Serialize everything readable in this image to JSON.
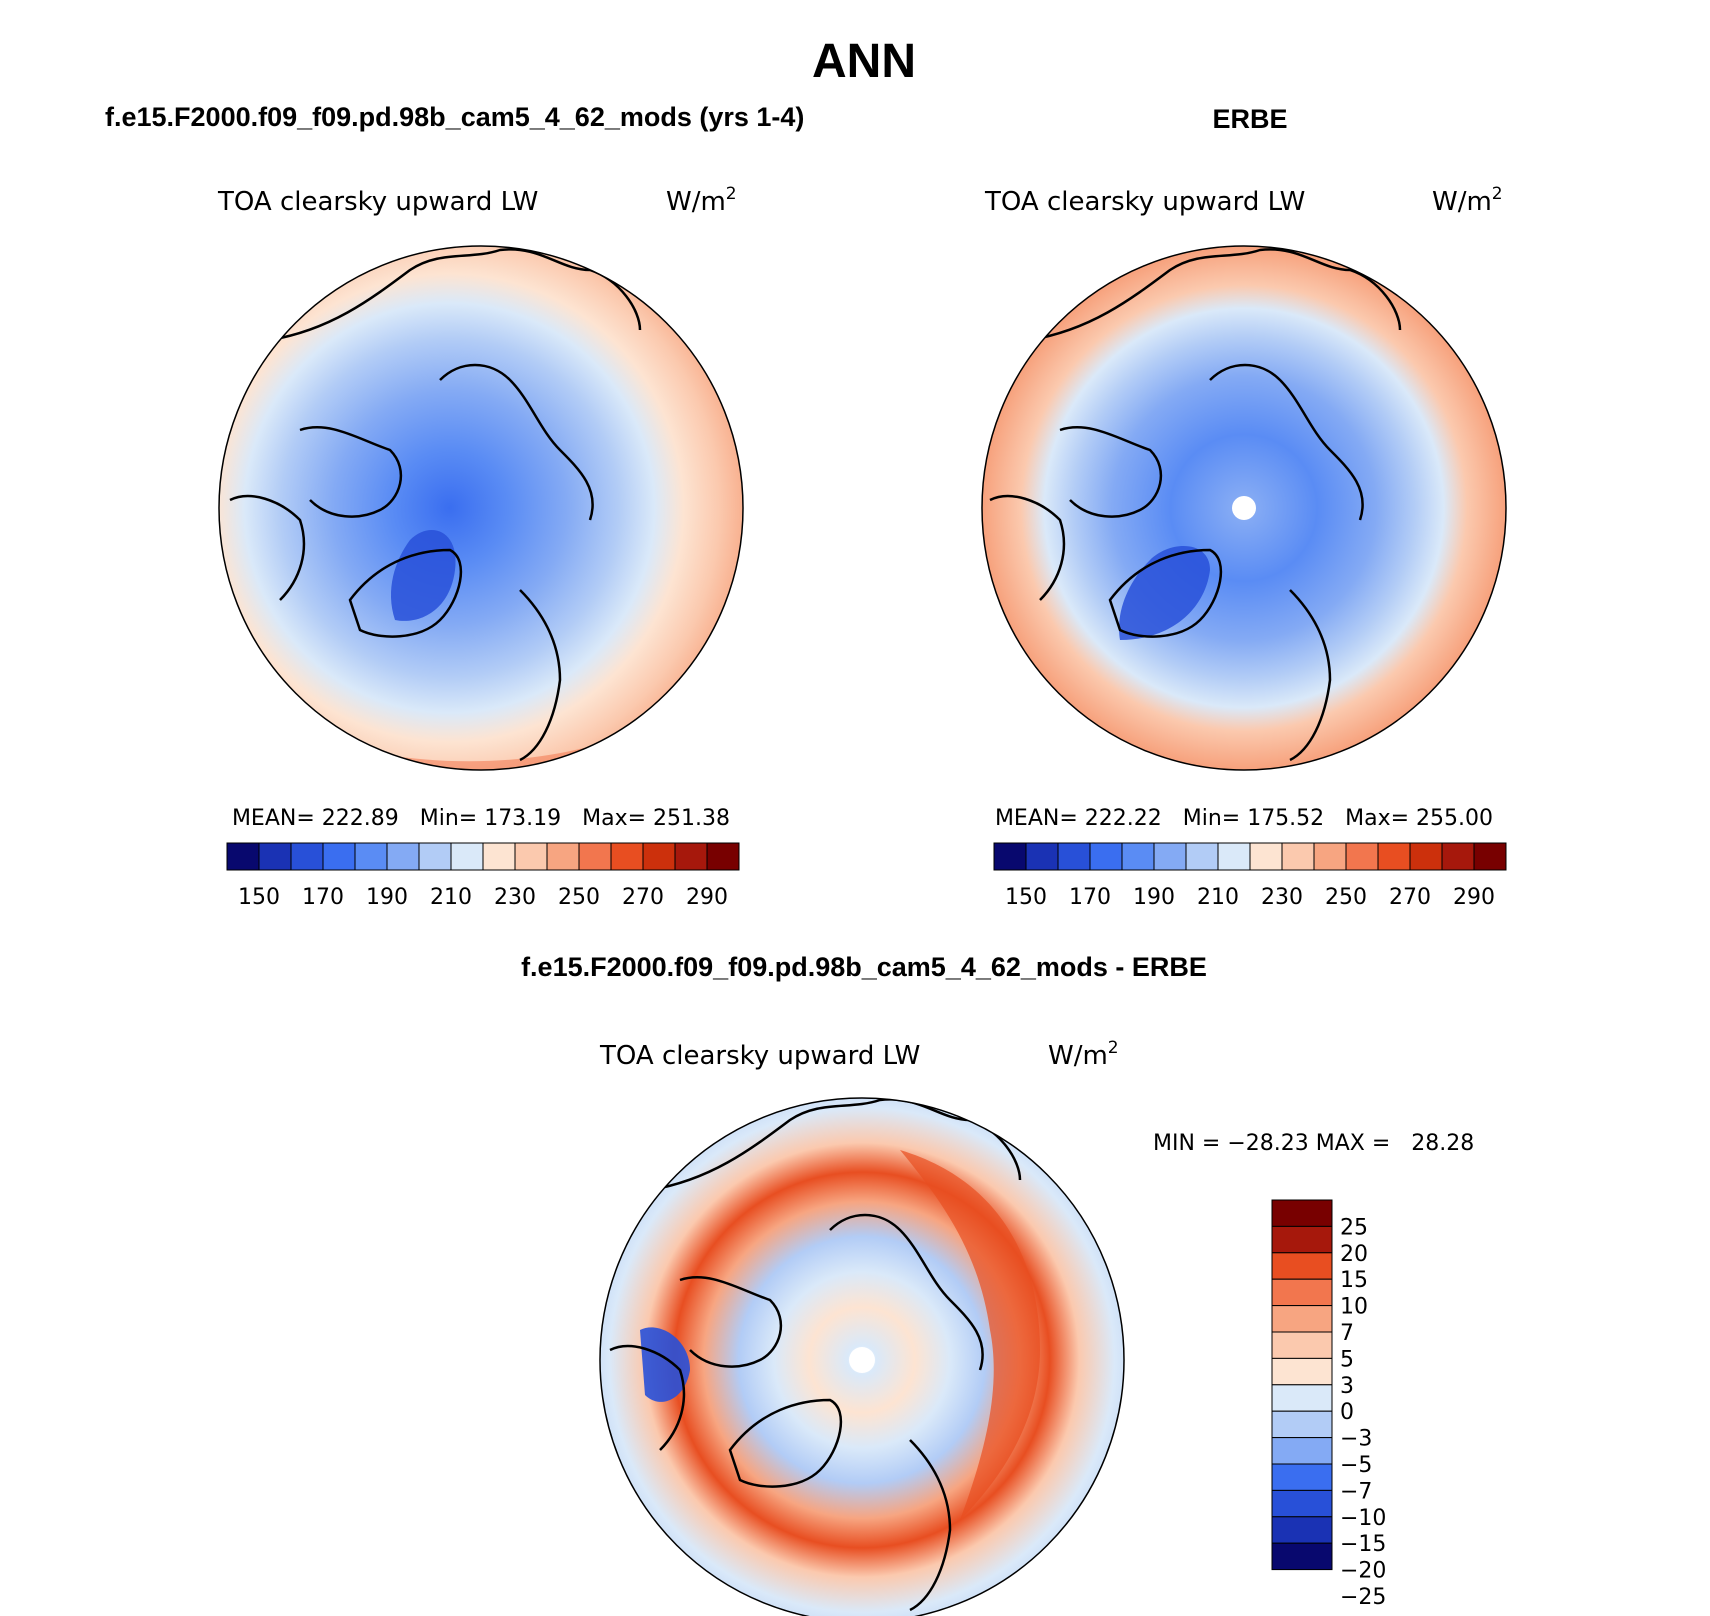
{
  "chart_data": {
    "type": "polar_contour_maps",
    "title": "ANN",
    "colors": {
      "abs_scale": [
        "#08086e",
        "#1a32b4",
        "#2850d8",
        "#3a6ef0",
        "#5a8cf4",
        "#84aaf4",
        "#b2ccf6",
        "#dae9f9",
        "#fde4d2",
        "#fbc9ae",
        "#f7a581",
        "#f2764e",
        "#e84e21",
        "#cc300c",
        "#a6180c",
        "#780000"
      ],
      "diff_scale": [
        "#08086e",
        "#1a32b4",
        "#2850d8",
        "#3a6ef0",
        "#84aaf4",
        "#b2ccf6",
        "#dae9f9",
        "#fde4d2",
        "#fbc9ae",
        "#f7a581",
        "#f2764e",
        "#e84e21",
        "#a6180c",
        "#780000"
      ]
    },
    "panels": [
      {
        "header": "f.e15.F2000.f09_f09.pd.98b_cam5_4_62_mods (yrs 1-4)",
        "variable": "TOA clearsky upward LW",
        "units_base": "W/m",
        "units_exp": "2",
        "stats": "MEAN= 222.89   Min= 173.19   Max= 251.38",
        "mean": 222.89,
        "min": 173.19,
        "max": 251.38,
        "colorbar_labels": [
          "150",
          "170",
          "190",
          "210",
          "230",
          "250",
          "270",
          "290"
        ]
      },
      {
        "header": "ERBE",
        "variable": "TOA clearsky upward LW",
        "units_base": "W/m",
        "units_exp": "2",
        "stats": "MEAN= 222.22   Min= 175.52   Max= 255.00",
        "mean": 222.22,
        "min": 175.52,
        "max": 255.0,
        "colorbar_labels": [
          "150",
          "170",
          "190",
          "210",
          "230",
          "250",
          "270",
          "290"
        ]
      },
      {
        "header": "f.e15.F2000.f09_f09.pd.98b_cam5_4_62_mods - ERBE",
        "variable": "TOA clearsky upward LW",
        "units_base": "W/m",
        "units_exp": "2",
        "stats": "MIN = −28.23 MAX =   28.28",
        "min": -28.23,
        "max": 28.28,
        "colorbar_labels": [
          "25",
          "20",
          "15",
          "10",
          "7",
          "5",
          "3",
          "0",
          "−3",
          "−5",
          "−7",
          "−10",
          "−15",
          "−20",
          "−25"
        ]
      }
    ]
  }
}
